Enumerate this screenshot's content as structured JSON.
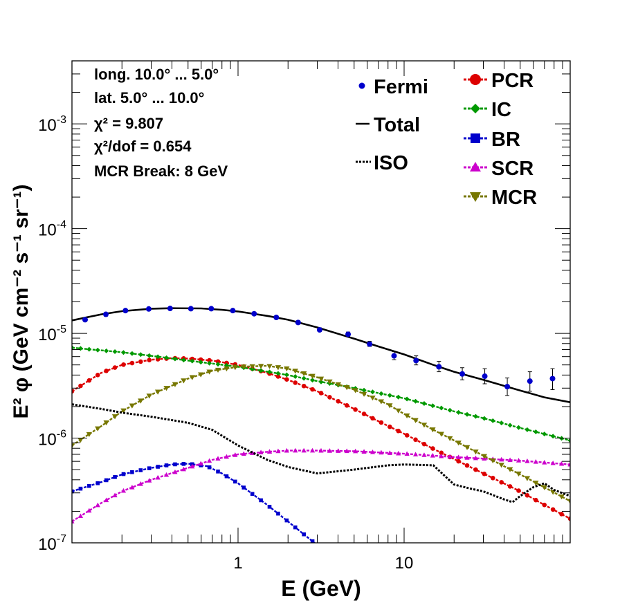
{
  "chart_data": {
    "type": "line",
    "x_scale": "log",
    "y_scale": "log",
    "xlim": [
      0.1,
      100
    ],
    "ylim": [
      1e-07,
      0.004
    ],
    "xlabel": "E (GeV)",
    "ylabel": "E² φ (GeV cm⁻² s⁻¹ sr⁻¹)",
    "x_tick_labels": [
      {
        "value": 1,
        "label": "1"
      },
      {
        "value": 10,
        "label": "10"
      }
    ],
    "y_tick_labels": [
      {
        "value": 1e-07,
        "base": "10",
        "exp": "-7"
      },
      {
        "value": 1e-06,
        "base": "10",
        "exp": "-6"
      },
      {
        "value": 1e-05,
        "base": "10",
        "exp": "-5"
      },
      {
        "value": 0.0001,
        "base": "10",
        "exp": "-4"
      },
      {
        "value": 0.001,
        "base": "10",
        "exp": "-3"
      }
    ],
    "info_lines": [
      "long. 10.0° ... 5.0°",
      "lat. 5.0° ... 10.0°",
      "χ² = 9.807",
      "χ²/dof = 0.654",
      "MCR Break:  8 GeV"
    ],
    "fermi": {
      "name": "Fermi",
      "color": "#0000cc",
      "x": [
        0.12,
        0.16,
        0.21,
        0.29,
        0.39,
        0.52,
        0.69,
        0.93,
        1.25,
        1.7,
        2.3,
        3.1,
        4.6,
        6.2,
        8.7,
        11.8,
        16.2,
        22.4,
        30.6,
        41.8,
        57.2,
        78.3
      ],
      "y": [
        1.35e-05,
        1.52e-05,
        1.65e-05,
        1.71e-05,
        1.73e-05,
        1.72e-05,
        1.72e-05,
        1.65e-05,
        1.54e-05,
        1.42e-05,
        1.27e-05,
        1.08e-05,
        9.8e-06,
        7.9e-06,
        6.1e-06,
        5.5e-06,
        4.8e-06,
        4.1e-06,
        3.9e-06,
        3.1e-06,
        3.5e-06,
        3.7e-06
      ],
      "err_low": [
        1.3e-05,
        1.46e-05,
        1.6e-05,
        1.66e-05,
        1.69e-05,
        1.68e-05,
        1.67e-05,
        1.6e-05,
        1.5e-05,
        1.38e-05,
        1.23e-05,
        1.04e-05,
        9.3e-06,
        7.5e-06,
        5.6e-06,
        5e-06,
        4.3e-06,
        3.6e-06,
        3.3e-06,
        2.55e-06,
        2.8e-06,
        2.9e-06
      ],
      "err_high": [
        1.4e-05,
        1.58e-05,
        1.7e-05,
        1.76e-05,
        1.78e-05,
        1.77e-05,
        1.77e-05,
        1.7e-05,
        1.59e-05,
        1.47e-05,
        1.32e-05,
        1.13e-05,
        1.03e-05,
        8.4e-06,
        6.7e-06,
        6.1e-06,
        5.4e-06,
        4.7e-06,
        4.6e-06,
        3.75e-06,
        4.3e-06,
        4.6e-06
      ]
    },
    "series": [
      {
        "name": "Total",
        "color": "#000000",
        "style": "solid",
        "marker": "none",
        "x": [
          0.1,
          0.15,
          0.2,
          0.3,
          0.4,
          0.6,
          0.8,
          1,
          1.5,
          2,
          3,
          5,
          7,
          10,
          15,
          20,
          30,
          50,
          70,
          100
        ],
        "y": [
          1.33e-05,
          1.52e-05,
          1.63e-05,
          1.72e-05,
          1.74e-05,
          1.73e-05,
          1.68e-05,
          1.62e-05,
          1.47e-05,
          1.35e-05,
          1.14e-05,
          8.9e-06,
          7.5e-06,
          6.3e-06,
          5e-06,
          4.3e-06,
          3.6e-06,
          2.85e-06,
          2.45e-06,
          2.2e-06
        ]
      },
      {
        "name": "PCR",
        "color": "#dd0000",
        "style": "dashed",
        "marker": "circle",
        "x": [
          0.1,
          0.15,
          0.2,
          0.3,
          0.4,
          0.5,
          0.7,
          1,
          1.5,
          2,
          3,
          5,
          7,
          10,
          15,
          20,
          30,
          50,
          70,
          100
        ],
        "y": [
          2.8e-06,
          4.2e-06,
          5e-06,
          5.6e-06,
          5.8e-06,
          5.75e-06,
          5.5e-06,
          5e-06,
          4.2e-06,
          3.6e-06,
          2.8e-06,
          1.9e-06,
          1.45e-06,
          1.1e-06,
          7.9e-07,
          6.3e-07,
          4.6e-07,
          3.1e-07,
          2.3e-07,
          1.7e-07
        ]
      },
      {
        "name": "IC",
        "color": "#009900",
        "style": "dashed",
        "marker": "diamond",
        "x": [
          0.1,
          0.2,
          0.3,
          0.5,
          1,
          2,
          3,
          5,
          10,
          20,
          30,
          50,
          100
        ],
        "y": [
          7.3e-06,
          6.6e-06,
          6.1e-06,
          5.5e-06,
          4.8e-06,
          4e-06,
          3.5e-06,
          3e-06,
          2.4e-06,
          1.8e-06,
          1.55e-06,
          1.25e-06,
          9.5e-07
        ]
      },
      {
        "name": "BR",
        "color": "#0000cc",
        "style": "dashed",
        "marker": "square",
        "x": [
          0.1,
          0.15,
          0.2,
          0.3,
          0.4,
          0.5,
          0.65,
          0.8,
          1,
          1.5,
          2,
          3
        ],
        "y": [
          3.1e-07,
          3.8e-07,
          4.5e-07,
          5.2e-07,
          5.6e-07,
          5.7e-07,
          5.4e-07,
          4.6e-07,
          3.7e-07,
          2.3e-07,
          1.6e-07,
          9.5e-08
        ]
      },
      {
        "name": "SCR",
        "color": "#cc00cc",
        "style": "dashed",
        "marker": "triangle-up",
        "x": [
          0.1,
          0.15,
          0.2,
          0.3,
          0.5,
          0.7,
          1,
          1.5,
          2,
          3,
          5,
          10,
          20,
          50,
          100
        ],
        "y": [
          1.6e-07,
          2.4e-07,
          3.1e-07,
          4e-07,
          5.2e-07,
          6.2e-07,
          7e-07,
          7.4e-07,
          7.6e-07,
          7.6e-07,
          7.5e-07,
          7.1e-07,
          6.6e-07,
          6.1e-07,
          5.6e-07
        ]
      },
      {
        "name": "MCR",
        "color": "#777700",
        "style": "dashed",
        "marker": "triangle-down",
        "x": [
          0.1,
          0.15,
          0.2,
          0.3,
          0.5,
          0.7,
          1,
          1.5,
          2,
          3,
          5,
          8,
          10,
          15,
          20,
          30,
          50,
          100
        ],
        "y": [
          8.5e-07,
          1.3e-06,
          1.8e-06,
          2.6e-06,
          3.7e-06,
          4.4e-06,
          4.8e-06,
          4.9e-06,
          4.6e-06,
          3.8e-06,
          2.9e-06,
          2.1e-06,
          1.7e-06,
          1.2e-06,
          9.5e-07,
          6.8e-07,
          4.5e-07,
          2.5e-07
        ]
      },
      {
        "name": "ISO",
        "color": "#000000",
        "style": "dotted",
        "marker": "none",
        "x": [
          0.1,
          0.15,
          0.2,
          0.3,
          0.5,
          0.7,
          1,
          1.5,
          2,
          3,
          5,
          8,
          10,
          15,
          20,
          25,
          30,
          40,
          45,
          50,
          60,
          70,
          80,
          100
        ],
        "y": [
          2.1e-06,
          1.9e-06,
          1.75e-06,
          1.6e-06,
          1.4e-06,
          1.2e-06,
          8.5e-07,
          6.2e-07,
          5.3e-07,
          4.6e-07,
          5e-07,
          5.5e-07,
          5.6e-07,
          5.5e-07,
          3.6e-07,
          3.3e-07,
          3.1e-07,
          2.6e-07,
          2.45e-07,
          2.8e-07,
          3.4e-07,
          3.7e-07,
          3.2e-07,
          2.8e-07
        ]
      }
    ],
    "legend_left": [
      "Fermi",
      "Total",
      "ISO"
    ],
    "legend_right": [
      "PCR",
      "IC",
      "BR",
      "SCR",
      "MCR"
    ]
  }
}
